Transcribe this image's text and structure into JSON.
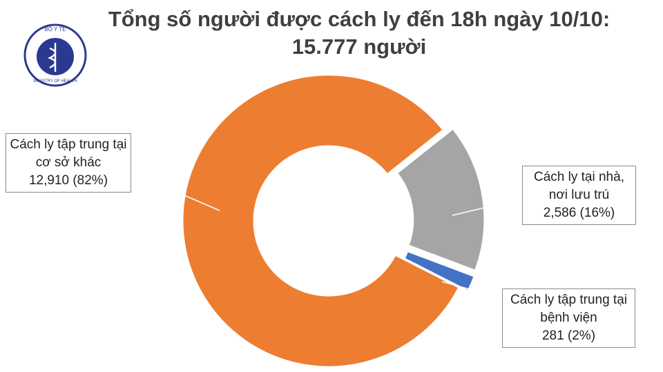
{
  "logo": {
    "top": "BỘ Y TẾ",
    "bottom": "MINISTRY OF HEALTH"
  },
  "chart_data": {
    "type": "donut",
    "title": "Tổng số người được cách ly đến 18h ngày 10/10: 15.777 người",
    "categories": [
      "Cách ly tập trung tại cơ sở khác",
      "Cách ly tại nhà, nơi lưu trú",
      "Cách ly tập trung tại bệnh viện"
    ],
    "values": [
      12910,
      2586,
      281
    ],
    "value_labels": [
      "12,910 (82%)",
      "2,586 (16%)",
      "281 (2%)"
    ],
    "colors": [
      "#ed7d31",
      "#a5a5a5",
      "#4472c4"
    ]
  }
}
